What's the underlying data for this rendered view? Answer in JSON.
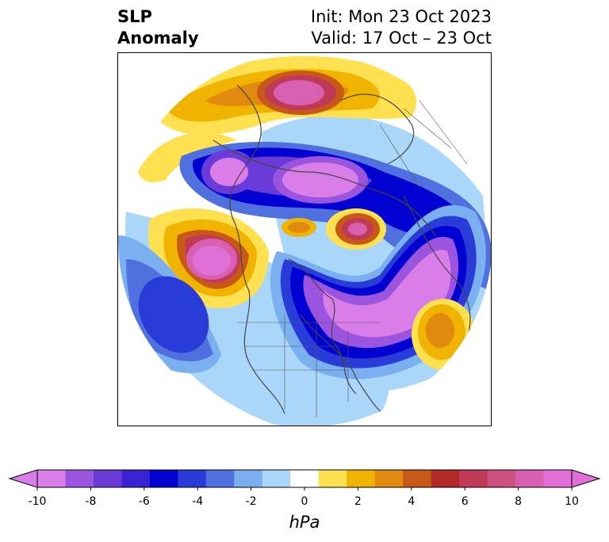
{
  "title": {
    "left_line1": "SLP",
    "left_line2": "Anomaly",
    "right_line1": "Init: Mon 23 Oct 2023",
    "right_line2": "Valid: 17 Oct – 23 Oct"
  },
  "colorbar": {
    "label": "hPa",
    "extend": "both",
    "levels": [
      -10,
      -9,
      -8,
      -7,
      -6,
      -5,
      -4,
      -3,
      -2,
      -1,
      1,
      2,
      3,
      4,
      5,
      6,
      7,
      8,
      9,
      10
    ],
    "ticks": [
      "-10",
      "-8",
      "-6",
      "-4",
      "-2",
      "0",
      "2",
      "4",
      "6",
      "8",
      "10"
    ],
    "colors": [
      "#d97ee9",
      "#9a54de",
      "#6a3bd6",
      "#3b22d2",
      "#0000d0",
      "#2a3cd8",
      "#5070e0",
      "#7ab0f0",
      "#aad6fa",
      "#ffffff",
      "#ffe050",
      "#f0b400",
      "#e08a10",
      "#c85818",
      "#b22a2a",
      "#c03a58",
      "#cc5080",
      "#d860b0",
      "#e070d8"
    ],
    "under_color": "#d97ee9",
    "over_color": "#e070d8"
  }
}
